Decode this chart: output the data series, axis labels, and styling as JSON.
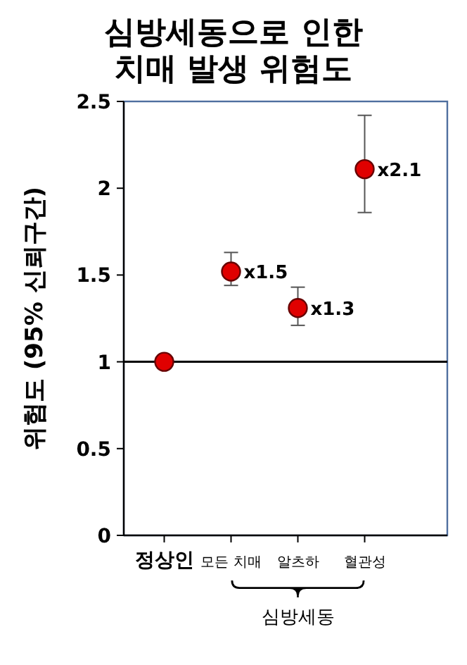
{
  "chart_data": {
    "type": "scatter",
    "title": "심방세동으로 인한\n치매 발생 위험도",
    "ylabel": "위험도 (95% 신뢰구간)",
    "categories": [
      "정상인",
      "모든 치매",
      "알츠하",
      "혈관성"
    ],
    "values": [
      1.0,
      1.52,
      1.31,
      2.11
    ],
    "errors": [
      null,
      [
        1.44,
        1.63
      ],
      [
        1.21,
        1.43
      ],
      [
        1.86,
        2.42
      ]
    ],
    "value_labels": [
      null,
      "x1.5",
      "x1.3",
      "x2.1"
    ],
    "color": "#e00000",
    "marker": "circle",
    "ylim": [
      0,
      2.5
    ],
    "yticks": [
      0,
      0.5,
      1,
      1.5,
      2,
      2.5
    ],
    "ref_lines": [
      {
        "axis": "y",
        "value": 1,
        "color": "#000000"
      }
    ],
    "annotations": [
      "심방세동"
    ],
    "grid": false
  }
}
